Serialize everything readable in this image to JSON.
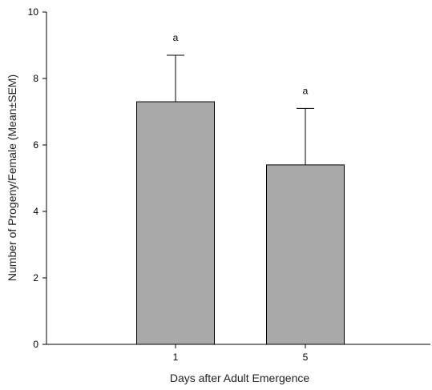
{
  "chart_data": {
    "type": "bar",
    "categories": [
      "1",
      "5"
    ],
    "values": [
      7.3,
      5.4
    ],
    "errors": [
      1.4,
      1.7
    ],
    "significance_labels": [
      "a",
      "a"
    ],
    "xlabel": "Days after Adult Emergence",
    "ylabel": "Number of Progeny/Female (Mean±SEM)",
    "ylim": [
      0,
      10
    ],
    "yticks": [
      "0",
      "2",
      "4",
      "6",
      "8",
      "10"
    ],
    "bar_color": "#a9a9a9",
    "grid": false,
    "legend": "none"
  }
}
